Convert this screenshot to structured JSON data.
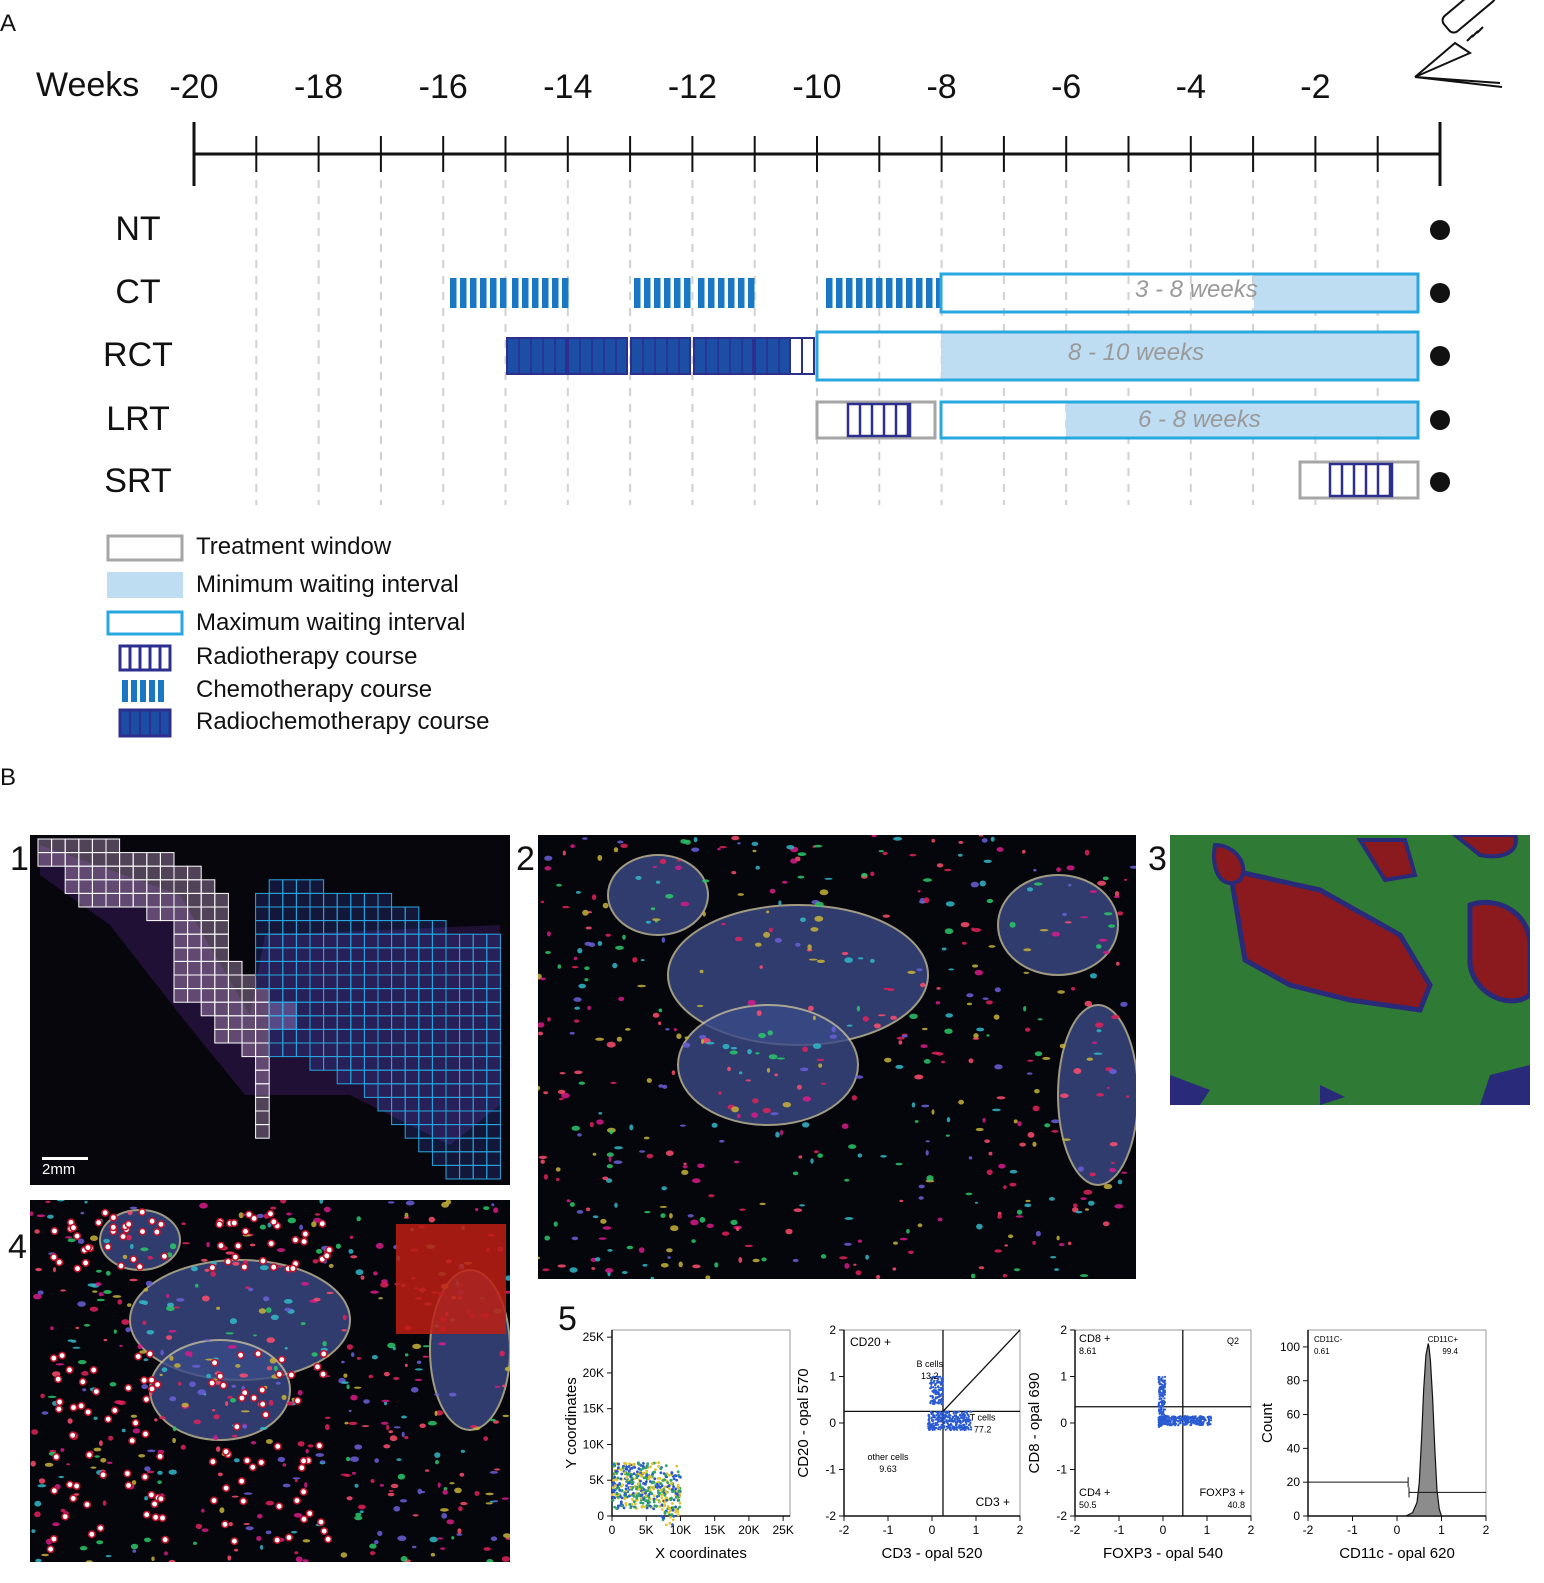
{
  "panel_a": {
    "letter": "A",
    "axis_title": "Weeks",
    "week_ticks": [
      "-20",
      "-18",
      "-16",
      "-14",
      "-12",
      "-10",
      "-8",
      "-6",
      "-4",
      "-2"
    ],
    "rows": [
      {
        "label": "NT"
      },
      {
        "label": "CT",
        "interval_text": "3 - 8 weeks"
      },
      {
        "label": "RCT",
        "interval_text": "8 - 10 weeks"
      },
      {
        "label": "LRT",
        "interval_text": "6 - 8 weeks"
      },
      {
        "label": "SRT"
      }
    ],
    "legend": [
      {
        "key": "treatment-window",
        "label": "Treatment window"
      },
      {
        "key": "minimum-waiting",
        "label": "Minimum waiting interval"
      },
      {
        "key": "maximum-waiting",
        "label": "Maximum waiting interval"
      },
      {
        "key": "radiotherapy",
        "label": "Radiotherapy course"
      },
      {
        "key": "chemotherapy",
        "label": "Chemotherapy course"
      },
      {
        "key": "radiochemotherapy",
        "label": "Radiochemotherapy course"
      }
    ],
    "surgery_icon": "scalpel-icon",
    "colors": {
      "chemo": "#1a77c4",
      "radio_outline": "#2d2f8f",
      "radiochemo": "#1d4ea6",
      "min_interval": "#bedcf2",
      "max_interval_border": "#29a7df",
      "treatment_window": "#a6a6a6"
    }
  },
  "panel_b": {
    "letter": "B",
    "sub_panels": [
      {
        "number": "1",
        "scale_bar": "2mm"
      },
      {
        "number": "2"
      },
      {
        "number": "3"
      },
      {
        "number": "4"
      },
      {
        "number": "5"
      }
    ]
  },
  "chart_data": [
    {
      "type": "scatter",
      "xlabel": "X coordinates",
      "ylabel": "Y coordinates",
      "x_ticks": [
        "0",
        "5K",
        "10K",
        "15K",
        "20K",
        "25K"
      ],
      "y_ticks": [
        "0",
        "5K",
        "10K",
        "15K",
        "20K",
        "25K"
      ],
      "xlim": [
        0,
        26000
      ],
      "ylim": [
        0,
        26000
      ],
      "cluster": {
        "x_range": [
          0,
          10000
        ],
        "y_range": [
          0,
          8000
        ]
      }
    },
    {
      "type": "scatter",
      "xlabel": "CD3 - opal 520",
      "ylabel": "CD20 - opal 570",
      "x_ticks": [
        "-2",
        "-1",
        "0",
        "1",
        "2"
      ],
      "y_ticks": [
        "-2",
        "-1",
        "0",
        "1",
        "2"
      ],
      "xlim": [
        -2,
        2
      ],
      "ylim": [
        -2,
        2
      ],
      "gate_x": 0.25,
      "gate_y": 0.25,
      "annotations": [
        {
          "text": "CD20 +"
        },
        {
          "text": "CD3 +"
        },
        {
          "text": "B cells",
          "value": "13.2"
        },
        {
          "text": "T cells",
          "value": "77.2"
        },
        {
          "text": "other cells",
          "value": "9.63"
        }
      ]
    },
    {
      "type": "scatter",
      "xlabel": "FOXP3 - opal 540",
      "ylabel": "CD8 - opal 690",
      "x_ticks": [
        "-2",
        "-1",
        "0",
        "1",
        "2"
      ],
      "y_ticks": [
        "-2",
        "-1",
        "0",
        "1",
        "2"
      ],
      "xlim": [
        -2,
        2
      ],
      "ylim": [
        -2,
        2
      ],
      "gate_x": 0.45,
      "gate_y": 0.35,
      "annotations": [
        {
          "text": "CD8 +",
          "value": "8.61"
        },
        {
          "text": "Q2"
        },
        {
          "text": "CD4 +",
          "value": "50.5"
        },
        {
          "text": "FOXP3 +",
          "value": "40.8"
        }
      ]
    },
    {
      "type": "area",
      "xlabel": "CD11c - opal 620",
      "ylabel": "Count",
      "x_ticks": [
        "-2",
        "-1",
        "0",
        "1",
        "2"
      ],
      "y_ticks": [
        "0",
        "20",
        "40",
        "60",
        "80",
        "100"
      ],
      "xlim": [
        -2,
        2
      ],
      "ylim": [
        0,
        110
      ],
      "histogram": {
        "x": [
          0.2,
          0.35,
          0.45,
          0.5,
          0.55,
          0.6,
          0.65,
          0.7,
          0.72,
          0.75,
          0.8,
          0.85,
          0.9,
          0.95,
          1.0
        ],
        "y": [
          0,
          2,
          8,
          20,
          45,
          75,
          95,
          102,
          100,
          92,
          70,
          40,
          15,
          4,
          0
        ]
      },
      "gates": [
        {
          "text": "CD11C-",
          "value": "0.61"
        },
        {
          "text": "CD11C+",
          "value": "99.4"
        }
      ]
    }
  ]
}
